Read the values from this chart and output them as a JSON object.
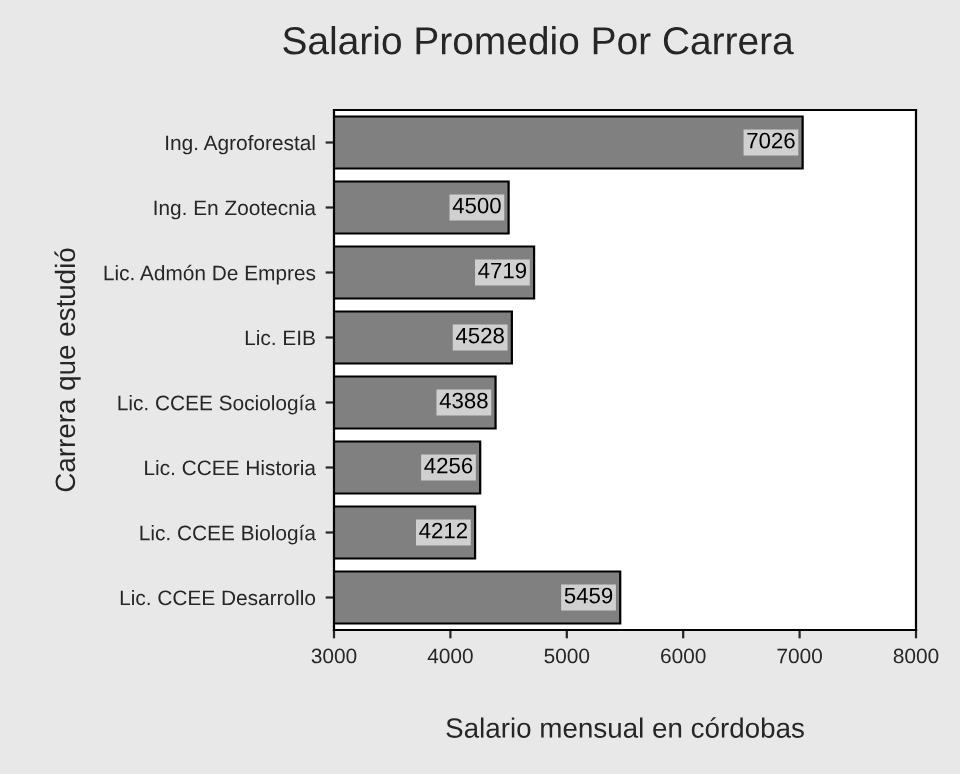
{
  "chart_data": {
    "type": "bar",
    "orientation": "horizontal",
    "title": "Salario Promedio Por Carrera",
    "xlabel": "Salario mensual en córdobas",
    "ylabel": "Carrera que estudió",
    "categories": [
      "Ing. Agroforestal",
      "Ing. En Zootecnia",
      "Lic. Admón De Empres",
      "Lic. EIB",
      "Lic. CCEE Sociología",
      "Lic. CCEE Historia",
      "Lic. CCEE Biología",
      "Lic. CCEE Desarrollo"
    ],
    "values": [
      7026,
      4500,
      4719,
      4528,
      4388,
      4256,
      4212,
      5459
    ],
    "color": "#808080",
    "xlim": [
      3000,
      8000
    ],
    "xticks": [
      3000,
      4000,
      5000,
      6000,
      7000,
      8000
    ],
    "data_labels": true,
    "grid": false,
    "legend": false
  }
}
